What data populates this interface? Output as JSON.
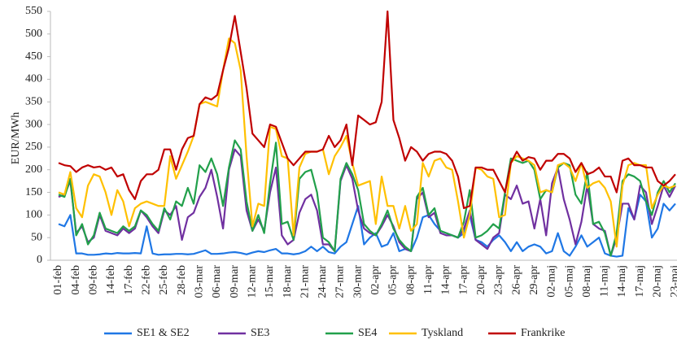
{
  "chart_data": {
    "type": "line",
    "ylabel": "EUR/MWh",
    "ylim": [
      0,
      550
    ],
    "yticks": [
      0,
      50,
      100,
      150,
      200,
      250,
      300,
      350,
      400,
      450,
      500,
      550
    ],
    "categories": [
      "01-feb",
      null,
      null,
      "04-feb",
      null,
      null,
      "09-feb",
      null,
      null,
      "14-feb",
      null,
      null,
      "17-feb",
      null,
      null,
      "22-feb",
      null,
      null,
      "25-feb",
      null,
      null,
      "28-feb",
      null,
      null,
      "03-mar",
      null,
      null,
      "06-mar",
      null,
      null,
      "09-mar",
      null,
      null,
      "12-mar",
      null,
      null,
      "15-mar",
      null,
      null,
      "18-mar",
      null,
      null,
      "21-mar",
      null,
      null,
      "24-mar",
      null,
      null,
      "27-mar",
      null,
      null,
      "30-mar",
      null,
      null,
      "02-apr",
      null,
      null,
      "05-apr",
      null,
      null,
      "08-apr",
      null,
      null,
      "11-apr",
      null,
      null,
      "14-apr",
      null,
      null,
      "17-apr",
      null,
      null,
      "20-apr",
      null,
      null,
      "23-apr",
      null,
      null,
      "26-apr",
      null,
      null,
      "29-apr",
      null,
      null,
      "02-maj",
      null,
      null,
      "05-maj",
      null,
      null,
      "08-maj",
      null,
      null,
      "11-maj",
      null,
      null,
      "14-maj",
      null,
      null,
      "17-maj",
      null,
      null,
      "20-maj",
      null,
      null,
      "23-maj"
    ],
    "series": [
      {
        "name": "SE1 & SE2",
        "color": "#1f77e5",
        "values": [
          80,
          75,
          100,
          15,
          15,
          12,
          12,
          13,
          15,
          14,
          16,
          15,
          15,
          16,
          15,
          75,
          15,
          12,
          13,
          13,
          14,
          14,
          13,
          14,
          18,
          22,
          14,
          14,
          15,
          17,
          18,
          16,
          13,
          17,
          20,
          18,
          22,
          25,
          15,
          15,
          13,
          15,
          20,
          30,
          20,
          30,
          18,
          15,
          30,
          40,
          80,
          120,
          35,
          50,
          60,
          30,
          35,
          60,
          20,
          25,
          20,
          50,
          95,
          100,
          80,
          65,
          60,
          55,
          50,
          60,
          100,
          45,
          40,
          30,
          45,
          55,
          40,
          20,
          40,
          20,
          30,
          35,
          30,
          15,
          20,
          60,
          20,
          10,
          30,
          55,
          30,
          40,
          50,
          15,
          10,
          8,
          10,
          115,
          90,
          145,
          130,
          50,
          70,
          125,
          110,
          125
        ]
      },
      {
        "name": "SE3",
        "color": "#7030a0",
        "values": [
          140,
          145,
          175,
          60,
          75,
          40,
          50,
          100,
          65,
          60,
          55,
          70,
          60,
          70,
          110,
          95,
          75,
          60,
          110,
          100,
          120,
          45,
          95,
          105,
          140,
          160,
          200,
          140,
          70,
          200,
          245,
          230,
          110,
          65,
          90,
          65,
          150,
          205,
          55,
          35,
          45,
          105,
          135,
          145,
          110,
          35,
          35,
          20,
          175,
          210,
          180,
          110,
          70,
          60,
          55,
          75,
          100,
          75,
          40,
          25,
          20,
          135,
          150,
          95,
          105,
          60,
          55,
          55,
          50,
          70,
          110,
          45,
          35,
          25,
          50,
          60,
          145,
          135,
          165,
          125,
          130,
          70,
          135,
          55,
          170,
          205,
          135,
          90,
          35,
          85,
          165,
          80,
          70,
          65,
          10,
          50,
          125,
          125,
          90,
          165,
          150,
          80,
          120,
          165,
          140,
          165
        ]
      },
      {
        "name": "SE4",
        "color": "#22a04b",
        "values": [
          145,
          140,
          180,
          55,
          80,
          35,
          55,
          105,
          70,
          65,
          60,
          75,
          65,
          75,
          110,
          100,
          80,
          65,
          115,
          90,
          130,
          120,
          160,
          125,
          210,
          195,
          225,
          190,
          120,
          205,
          265,
          245,
          130,
          65,
          100,
          60,
          170,
          260,
          80,
          85,
          45,
          180,
          195,
          200,
          150,
          50,
          40,
          20,
          180,
          215,
          190,
          155,
          80,
          65,
          55,
          80,
          110,
          70,
          45,
          30,
          20,
          140,
          160,
          100,
          115,
          65,
          60,
          55,
          50,
          85,
          155,
          50,
          55,
          65,
          80,
          70,
          150,
          225,
          220,
          215,
          220,
          200,
          135,
          155,
          150,
          205,
          215,
          210,
          145,
          125,
          195,
          80,
          85,
          60,
          10,
          60,
          175,
          190,
          185,
          175,
          130,
          100,
          150,
          175,
          150,
          170
        ]
      },
      {
        "name": "Tyskland",
        "color": "#ffc000",
        "values": [
          150,
          145,
          195,
          115,
          95,
          165,
          190,
          185,
          150,
          100,
          155,
          130,
          75,
          115,
          125,
          130,
          125,
          120,
          120,
          230,
          180,
          210,
          240,
          275,
          345,
          350,
          345,
          340,
          420,
          490,
          480,
          420,
          230,
          75,
          125,
          120,
          295,
          290,
          230,
          225,
          55,
          205,
          235,
          240,
          240,
          245,
          190,
          230,
          250,
          275,
          215,
          165,
          170,
          175,
          80,
          185,
          120,
          120,
          70,
          120,
          65,
          80,
          215,
          185,
          220,
          225,
          205,
          200,
          130,
          50,
          100,
          205,
          200,
          185,
          180,
          95,
          100,
          215,
          230,
          225,
          220,
          210,
          150,
          155,
          150,
          210,
          215,
          205,
          175,
          215,
          160,
          170,
          175,
          160,
          130,
          30,
          165,
          210,
          215,
          210,
          210,
          115,
          145,
          165,
          160,
          165
        ]
      },
      {
        "name": "Frankrike",
        "color": "#c00000",
        "values": [
          215,
          210,
          208,
          195,
          205,
          210,
          205,
          207,
          200,
          205,
          185,
          190,
          155,
          135,
          175,
          190,
          190,
          200,
          245,
          245,
          200,
          245,
          270,
          275,
          345,
          360,
          355,
          365,
          420,
          470,
          540,
          460,
          380,
          280,
          265,
          250,
          300,
          295,
          260,
          225,
          210,
          225,
          240,
          240,
          240,
          245,
          275,
          250,
          265,
          300,
          210,
          320,
          310,
          300,
          305,
          350,
          550,
          310,
          270,
          220,
          250,
          240,
          220,
          235,
          240,
          240,
          235,
          220,
          185,
          115,
          120,
          205,
          205,
          200,
          200,
          175,
          150,
          215,
          240,
          220,
          228,
          225,
          200,
          220,
          220,
          235,
          235,
          225,
          195,
          215,
          190,
          195,
          205,
          185,
          185,
          150,
          220,
          225,
          210,
          210,
          205,
          205,
          175,
          165,
          175,
          190
        ]
      }
    ]
  }
}
